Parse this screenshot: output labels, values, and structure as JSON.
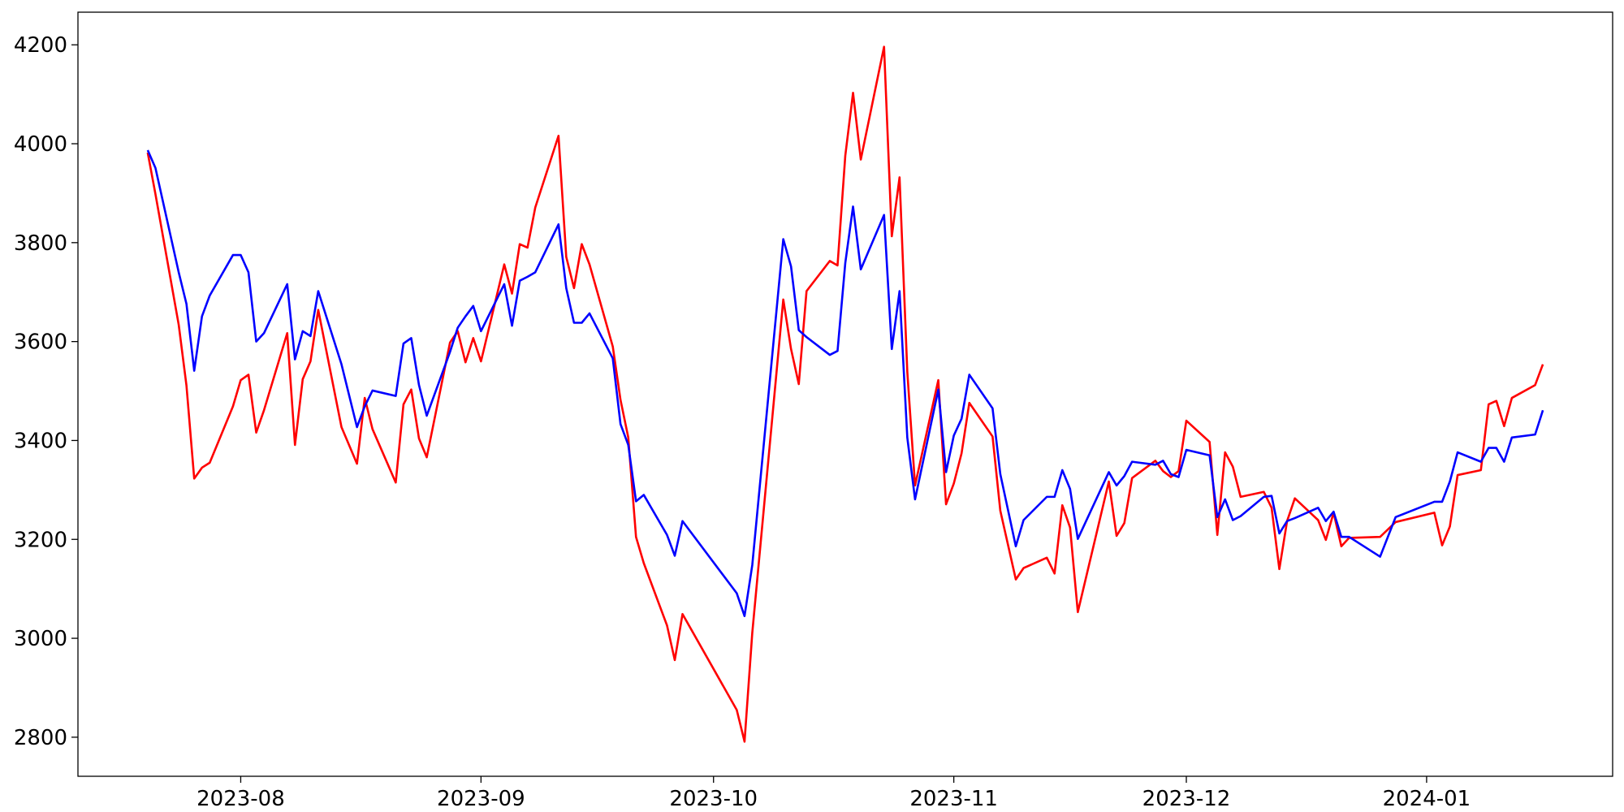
{
  "chart_data": {
    "type": "line",
    "x": [
      "2023-07-20",
      "2023-07-21",
      "2023-07-24",
      "2023-07-25",
      "2023-07-26",
      "2023-07-27",
      "2023-07-28",
      "2023-07-31",
      "2023-08-01",
      "2023-08-02",
      "2023-08-03",
      "2023-08-04",
      "2023-08-07",
      "2023-08-08",
      "2023-08-09",
      "2023-08-10",
      "2023-08-11",
      "2023-08-14",
      "2023-08-16",
      "2023-08-17",
      "2023-08-18",
      "2023-08-21",
      "2023-08-22",
      "2023-08-23",
      "2023-08-24",
      "2023-08-25",
      "2023-08-28",
      "2023-08-29",
      "2023-08-30",
      "2023-08-31",
      "2023-09-01",
      "2023-09-04",
      "2023-09-05",
      "2023-09-06",
      "2023-09-07",
      "2023-09-08",
      "2023-09-11",
      "2023-09-12",
      "2023-09-13",
      "2023-09-14",
      "2023-09-15",
      "2023-09-18",
      "2023-09-19",
      "2023-09-20",
      "2023-09-21",
      "2023-09-22",
      "2023-09-25",
      "2023-09-26",
      "2023-09-27",
      "2023-10-04",
      "2023-10-05",
      "2023-10-06",
      "2023-10-10",
      "2023-10-11",
      "2023-10-12",
      "2023-10-13",
      "2023-10-16",
      "2023-10-17",
      "2023-10-18",
      "2023-10-19",
      "2023-10-20",
      "2023-10-23",
      "2023-10-24",
      "2023-10-25",
      "2023-10-26",
      "2023-10-27",
      "2023-10-30",
      "2023-10-31",
      "2023-11-01",
      "2023-11-02",
      "2023-11-03",
      "2023-11-06",
      "2023-11-07",
      "2023-11-09",
      "2023-11-10",
      "2023-11-13",
      "2023-11-14",
      "2023-11-15",
      "2023-11-16",
      "2023-11-17",
      "2023-11-21",
      "2023-11-22",
      "2023-11-23",
      "2023-11-24",
      "2023-11-27",
      "2023-11-28",
      "2023-11-29",
      "2023-11-30",
      "2023-12-01",
      "2023-12-04",
      "2023-12-05",
      "2023-12-06",
      "2023-12-07",
      "2023-12-08",
      "2023-12-11",
      "2023-12-12",
      "2023-12-13",
      "2023-12-14",
      "2023-12-15",
      "2023-12-18",
      "2023-12-19",
      "2023-12-20",
      "2023-12-21",
      "2023-12-22",
      "2023-12-26",
      "2023-12-28",
      "2024-01-02",
      "2024-01-03",
      "2024-01-04",
      "2024-01-05",
      "2024-01-08",
      "2024-01-09",
      "2024-01-10",
      "2024-01-11",
      "2024-01-12",
      "2024-01-15",
      "2024-01-16"
    ],
    "series": [
      {
        "color": "#ff0000",
        "values": [
          3982,
          3898,
          3634,
          3511,
          3323,
          3345,
          3355,
          3469,
          3522,
          3533,
          3416,
          3461,
          3617,
          3391,
          3524,
          3560,
          3664,
          3427,
          3353,
          3486,
          3423,
          3315,
          3473,
          3503,
          3404,
          3366,
          3598,
          3621,
          3558,
          3607,
          3560,
          3756,
          3697,
          3797,
          3790,
          3871,
          4016,
          3771,
          3708,
          3797,
          3756,
          3590,
          3482,
          3406,
          3205,
          3152,
          3026,
          2956,
          3049,
          2855,
          2791,
          3011,
          3685,
          3585,
          3514,
          3702,
          3763,
          3754,
          3976,
          4103,
          3968,
          4196,
          3813,
          3932,
          3539,
          3309,
          3522,
          3271,
          3313,
          3374,
          3476,
          3408,
          3258,
          3119,
          3142,
          3163,
          3131,
          3269,
          3224,
          3053,
          3317,
          3207,
          3233,
          3324,
          3359,
          3338,
          3326,
          3338,
          3440,
          3397,
          3209,
          3376,
          3347,
          3286,
          3296,
          3264,
          3140,
          3237,
          3283,
          3239,
          3199,
          3254,
          3186,
          3203,
          3205,
          3235,
          3254,
          3188,
          3226,
          3330,
          3340,
          3473,
          3480,
          3429,
          3486,
          3512,
          3554
        ]
      },
      {
        "color": "#0000ff",
        "values": [
          3987,
          3951,
          3740,
          3676,
          3541,
          3651,
          3693,
          3775,
          3775,
          3740,
          3600,
          3617,
          3716,
          3564,
          3621,
          3611,
          3702,
          3554,
          3427,
          3469,
          3501,
          3490,
          3596,
          3607,
          3512,
          3450,
          3579,
          3628,
          3651,
          3672,
          3621,
          3716,
          3632,
          3723,
          3731,
          3740,
          3837,
          3708,
          3638,
          3638,
          3657,
          3566,
          3433,
          3391,
          3277,
          3290,
          3209,
          3167,
          3237,
          3091,
          3045,
          3148,
          3807,
          3752,
          3623,
          3609,
          3573,
          3581,
          3759,
          3873,
          3746,
          3856,
          3585,
          3702,
          3406,
          3281,
          3503,
          3336,
          3410,
          3444,
          3533,
          3465,
          3332,
          3186,
          3239,
          3286,
          3286,
          3340,
          3302,
          3201,
          3336,
          3309,
          3328,
          3357,
          3351,
          3359,
          3332,
          3326,
          3381,
          3370,
          3245,
          3281,
          3239,
          3247,
          3286,
          3288,
          3212,
          3237,
          3243,
          3264,
          3237,
          3256,
          3205,
          3205,
          3165,
          3245,
          3276,
          3276,
          3317,
          3376,
          3357,
          3385,
          3385,
          3357,
          3406,
          3412,
          3461
        ]
      }
    ],
    "xlim": [
      "2023-07-11",
      "2024-01-25"
    ],
    "xticks": [
      {
        "value": "2023-08-01",
        "label": "2023-08"
      },
      {
        "value": "2023-09-01",
        "label": "2023-09"
      },
      {
        "value": "2023-10-01",
        "label": "2023-10"
      },
      {
        "value": "2023-11-01",
        "label": "2023-11"
      },
      {
        "value": "2023-12-01",
        "label": "2023-12"
      },
      {
        "value": "2024-01-01",
        "label": "2024-01"
      }
    ],
    "ylim": [
      2721,
      4266
    ],
    "yticks": [
      2800,
      3000,
      3200,
      3400,
      3600,
      3800,
      4000,
      4200
    ],
    "grid": false
  }
}
